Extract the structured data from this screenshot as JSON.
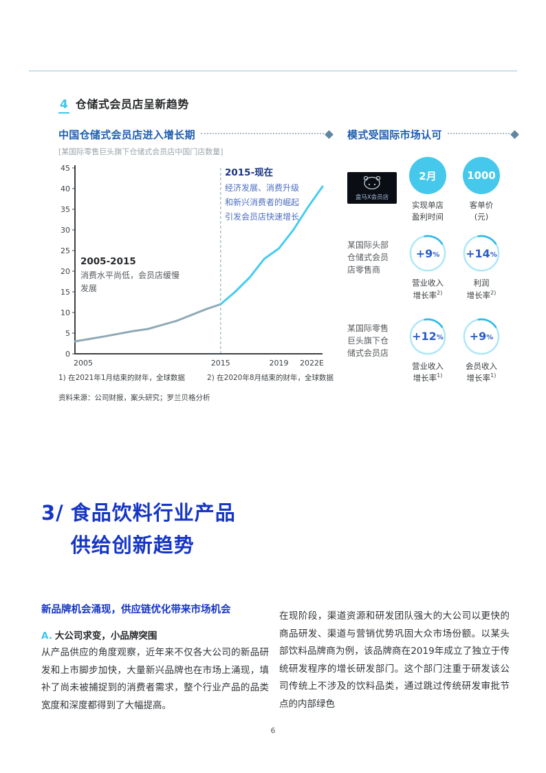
{
  "colors": {
    "accent_cyan": "#3ec5ea",
    "heading_blue": "#1535c4",
    "chart_title_blue": "#1e5eb0",
    "slow_line_gray": "#8ea9b6",
    "fast_line_cyan": "#45cbf2",
    "diamond_slate": "#5e87a3"
  },
  "section": {
    "number": "4",
    "title": "仓储式会员店呈新趋势"
  },
  "chart_data": {
    "type": "line",
    "title": "中国仓储式会员店进入增长期",
    "subtitle": "[某国际零售巨头旗下仓储式会员店中国门店数量]",
    "xlabel": "",
    "ylabel": "",
    "xlim": [
      2005,
      2022
    ],
    "ylim": [
      0,
      45
    ],
    "grid": false,
    "yticks": [
      0,
      5,
      10,
      15,
      20,
      25,
      30,
      35,
      40,
      45
    ],
    "xticks": [
      {
        "x": 2005,
        "label": "2005"
      },
      {
        "x": 2015,
        "label": "2015"
      },
      {
        "x": 2019,
        "label": "2019"
      },
      {
        "x": 2022,
        "label": "2022E"
      }
    ],
    "divider_x": 2015,
    "series": [
      {
        "name": "2005-2015 缓慢发展",
        "color": "#8ea9b6",
        "points": [
          [
            2005,
            3
          ],
          [
            2007,
            4.2
          ],
          [
            2009,
            5.5
          ],
          [
            2010,
            6
          ],
          [
            2012,
            8
          ],
          [
            2014,
            10.8
          ],
          [
            2015,
            12
          ]
        ]
      },
      {
        "name": "2015-现在 快速增长",
        "color": "#45cbf2",
        "points": [
          [
            2015,
            12
          ],
          [
            2016,
            15
          ],
          [
            2017,
            18.5
          ],
          [
            2018,
            23
          ],
          [
            2019,
            25.5
          ],
          [
            2020,
            30
          ],
          [
            2021,
            35.5
          ],
          [
            2022,
            40.5
          ]
        ]
      }
    ],
    "annotations": [
      {
        "title": "2005-2015",
        "text": "消费水平尚低，会员店缓慢发展"
      },
      {
        "title": "2015-现在",
        "text": "经济发展、消费升级和新兴消费者的崛起引发会员店快速增长"
      }
    ]
  },
  "panel": {
    "title": "模式受国际市场认可",
    "rows": [
      {
        "logo_text": "盒马X会员店",
        "stats": [
          {
            "type": "solid",
            "value": "2月",
            "unit": "",
            "label1": "实现单店",
            "label2": "盈利时间",
            "sup": ""
          },
          {
            "type": "solid",
            "value": "1000",
            "unit": "",
            "label1": "客单价",
            "label2": "(元)",
            "sup": ""
          }
        ]
      },
      {
        "label": "某国际头部仓储式会员店零售商",
        "stats": [
          {
            "type": "ring",
            "value": "+9",
            "unit": "%",
            "label1": "营业收入",
            "label2": "增长率",
            "sup": "2)"
          },
          {
            "type": "ring",
            "value": "+14",
            "unit": "%",
            "label1": "利润",
            "label2": "增长率",
            "sup": "2)"
          }
        ]
      },
      {
        "label": "某国际零售巨头旗下仓储式会员店",
        "stats": [
          {
            "type": "ring",
            "value": "+12",
            "unit": "%",
            "label1": "营业收入",
            "label2": "增长率",
            "sup": "1)"
          },
          {
            "type": "ring",
            "value": "+9",
            "unit": "%",
            "label1": "会员收入",
            "label2": "增长率",
            "sup": "1)"
          }
        ]
      }
    ]
  },
  "footnotes": [
    "1) 在2021年1月结束的财年，全球数据",
    "2) 在2020年8月结束的财年，全球数据"
  ],
  "source": "资料来源：公司财报，案头研究；罗兰贝格分析",
  "section3": {
    "prefix": "3/",
    "line1": "食品饮料行业产品",
    "line2": "供给创新趋势"
  },
  "body": {
    "subheading": "新品牌机会涌现，供应链优化带来市场机会",
    "point_marker": "A.",
    "point_title": "大公司求变，小品牌突围",
    "left_paragraph": "从产品供应的角度观察，近年来不仅各大公司的新品研发和上市脚步加快，大量新兴品牌也在市场上涌现，填补了尚未被捕捉到的消费者需求，整个行业产品的品类宽度和深度都得到了大幅提高。",
    "right_paragraph": "在现阶段，渠道资源和研发团队强大的大公司以更快的商品研发、渠道与营销优势巩固大众市场份额。以某头部饮料品牌商为例，该品牌商在2019年成立了独立于传统研发程序的增长研发部门。这个部门注重于研发该公司传统上不涉及的饮料品类，通过跳过传统研发审批节点的内部绿色"
  },
  "page_number": "6"
}
